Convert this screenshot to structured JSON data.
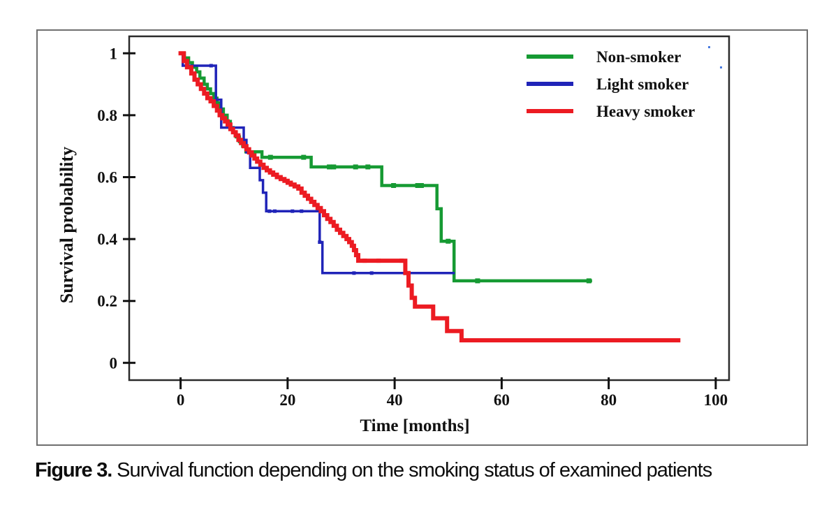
{
  "figure": {
    "caption_prefix": "Figure 3.",
    "caption_text": " Survival function depending on the smoking status of examined patients"
  },
  "chart_data": {
    "type": "line",
    "subtype": "kaplan-meier-step-curves",
    "title": "",
    "grid": false,
    "x_axis": {
      "label": "Time [months]",
      "tick_values": [
        0,
        20,
        40,
        60,
        80,
        100
      ],
      "range": [
        -10,
        103
      ]
    },
    "y_axis": {
      "label": "Survival probability",
      "tick_labels": [
        "1",
        "0.8",
        "0.6",
        "0.4",
        "0.2",
        "0"
      ],
      "tick_values": [
        1,
        0.8,
        0.6,
        0.4,
        0.2,
        0
      ],
      "range": [
        -0.06,
        1.06
      ]
    },
    "legend": {
      "position": "top-right",
      "entries": [
        {
          "label": "Non-smoker",
          "color": "#169a33"
        },
        {
          "label": "Light smoker",
          "color": "#2024b8"
        },
        {
          "label": "Heavy smoker",
          "color": "#ec1b22"
        }
      ]
    },
    "series": [
      {
        "name": "Non-smoker",
        "color": "#169a33",
        "stroke_width": 4.5,
        "marker_size": 7,
        "steps": [
          [
            0,
            1.0
          ],
          [
            0.7,
            0.985
          ],
          [
            1.5,
            0.97
          ],
          [
            2.2,
            0.955
          ],
          [
            3.0,
            0.94
          ],
          [
            3.6,
            0.92
          ],
          [
            4.4,
            0.9
          ],
          [
            5.0,
            0.885
          ],
          [
            5.6,
            0.87
          ],
          [
            6.2,
            0.855
          ],
          [
            6.8,
            0.84
          ],
          [
            7.4,
            0.82
          ],
          [
            8.0,
            0.8
          ],
          [
            8.7,
            0.78
          ],
          [
            9.3,
            0.76
          ],
          [
            9.8,
            0.745
          ],
          [
            10.4,
            0.73
          ],
          [
            11.0,
            0.715
          ],
          [
            11.6,
            0.7
          ],
          [
            12.2,
            0.682
          ],
          [
            15.2,
            0.664
          ],
          [
            24.4,
            0.633
          ],
          [
            37.6,
            0.573
          ],
          [
            47.9,
            0.498
          ],
          [
            48.7,
            0.393
          ],
          [
            51.1,
            0.265
          ]
        ],
        "end_t": 76.6,
        "markers": [
          [
            16.8,
            0.664
          ],
          [
            23.0,
            0.664
          ],
          [
            27.8,
            0.633
          ],
          [
            28.6,
            0.633
          ],
          [
            32.7,
            0.633
          ],
          [
            35.0,
            0.633
          ],
          [
            39.8,
            0.573
          ],
          [
            44.3,
            0.573
          ],
          [
            45.0,
            0.573
          ],
          [
            50.0,
            0.393
          ],
          [
            55.5,
            0.265
          ],
          [
            76.3,
            0.265
          ]
        ]
      },
      {
        "name": "Light smoker",
        "color": "#2024b8",
        "stroke_width": 3.5,
        "marker_size": 5,
        "steps": [
          [
            0,
            1.0
          ],
          [
            0.4,
            0.96
          ],
          [
            6.6,
            0.85
          ],
          [
            7.6,
            0.76
          ],
          [
            11.8,
            0.72
          ],
          [
            12.3,
            0.68
          ],
          [
            13.0,
            0.63
          ],
          [
            14.8,
            0.59
          ],
          [
            15.4,
            0.55
          ],
          [
            16.0,
            0.49
          ],
          [
            26.0,
            0.39
          ],
          [
            26.5,
            0.29
          ]
        ],
        "end_t": 51.0,
        "markers": [
          [
            5.7,
            0.96
          ],
          [
            16.6,
            0.49
          ],
          [
            17.6,
            0.49
          ],
          [
            20.9,
            0.49
          ],
          [
            22.6,
            0.49
          ],
          [
            26.0,
            0.39
          ],
          [
            32.4,
            0.29
          ],
          [
            35.7,
            0.29
          ]
        ]
      },
      {
        "name": "Heavy smoker",
        "color": "#ec1b22",
        "stroke_width": 6,
        "marker_size": 6,
        "steps": [
          [
            0,
            1.0
          ],
          [
            0.6,
            0.975
          ],
          [
            1.2,
            0.955
          ],
          [
            2.0,
            0.935
          ],
          [
            2.6,
            0.915
          ],
          [
            3.2,
            0.9
          ],
          [
            3.8,
            0.885
          ],
          [
            4.4,
            0.87
          ],
          [
            5.0,
            0.855
          ],
          [
            5.6,
            0.845
          ],
          [
            6.2,
            0.83
          ],
          [
            6.8,
            0.815
          ],
          [
            7.3,
            0.8
          ],
          [
            7.8,
            0.79
          ],
          [
            8.3,
            0.78
          ],
          [
            8.8,
            0.77
          ],
          [
            9.3,
            0.755
          ],
          [
            9.8,
            0.745
          ],
          [
            10.3,
            0.735
          ],
          [
            10.8,
            0.72
          ],
          [
            11.3,
            0.71
          ],
          [
            11.8,
            0.7
          ],
          [
            12.3,
            0.69
          ],
          [
            12.8,
            0.68
          ],
          [
            13.3,
            0.67
          ],
          [
            13.8,
            0.66
          ],
          [
            14.3,
            0.65
          ],
          [
            14.9,
            0.64
          ],
          [
            15.5,
            0.63
          ],
          [
            16.1,
            0.622
          ],
          [
            16.7,
            0.615
          ],
          [
            17.3,
            0.608
          ],
          [
            18.0,
            0.6
          ],
          [
            18.7,
            0.594
          ],
          [
            19.4,
            0.588
          ],
          [
            20.0,
            0.582
          ],
          [
            20.6,
            0.576
          ],
          [
            21.3,
            0.57
          ],
          [
            22.0,
            0.563
          ],
          [
            22.6,
            0.55
          ],
          [
            23.2,
            0.54
          ],
          [
            23.8,
            0.53
          ],
          [
            24.4,
            0.52
          ],
          [
            25.0,
            0.51
          ],
          [
            25.6,
            0.5
          ],
          [
            26.2,
            0.49
          ],
          [
            26.8,
            0.477
          ],
          [
            27.4,
            0.465
          ],
          [
            28.0,
            0.455
          ],
          [
            28.6,
            0.443
          ],
          [
            29.2,
            0.43
          ],
          [
            29.8,
            0.42
          ],
          [
            30.4,
            0.41
          ],
          [
            31.0,
            0.4
          ],
          [
            31.5,
            0.39
          ],
          [
            32.0,
            0.378
          ],
          [
            32.4,
            0.364
          ],
          [
            32.8,
            0.348
          ],
          [
            33.2,
            0.33
          ],
          [
            42.0,
            0.29
          ],
          [
            42.6,
            0.25
          ],
          [
            43.2,
            0.21
          ],
          [
            43.8,
            0.182
          ],
          [
            47.2,
            0.144
          ],
          [
            49.8,
            0.103
          ],
          [
            52.5,
            0.073
          ]
        ],
        "end_t": 93.0,
        "markers": [
          [
            34.4,
            0.33
          ],
          [
            37.0,
            0.33
          ],
          [
            41.3,
            0.33
          ],
          [
            83.0,
            0.073
          ],
          [
            92.8,
            0.073
          ]
        ]
      }
    ],
    "noise_dots": [
      {
        "x": 960,
        "y": 22
      },
      {
        "x": 977,
        "y": 51
      }
    ]
  }
}
